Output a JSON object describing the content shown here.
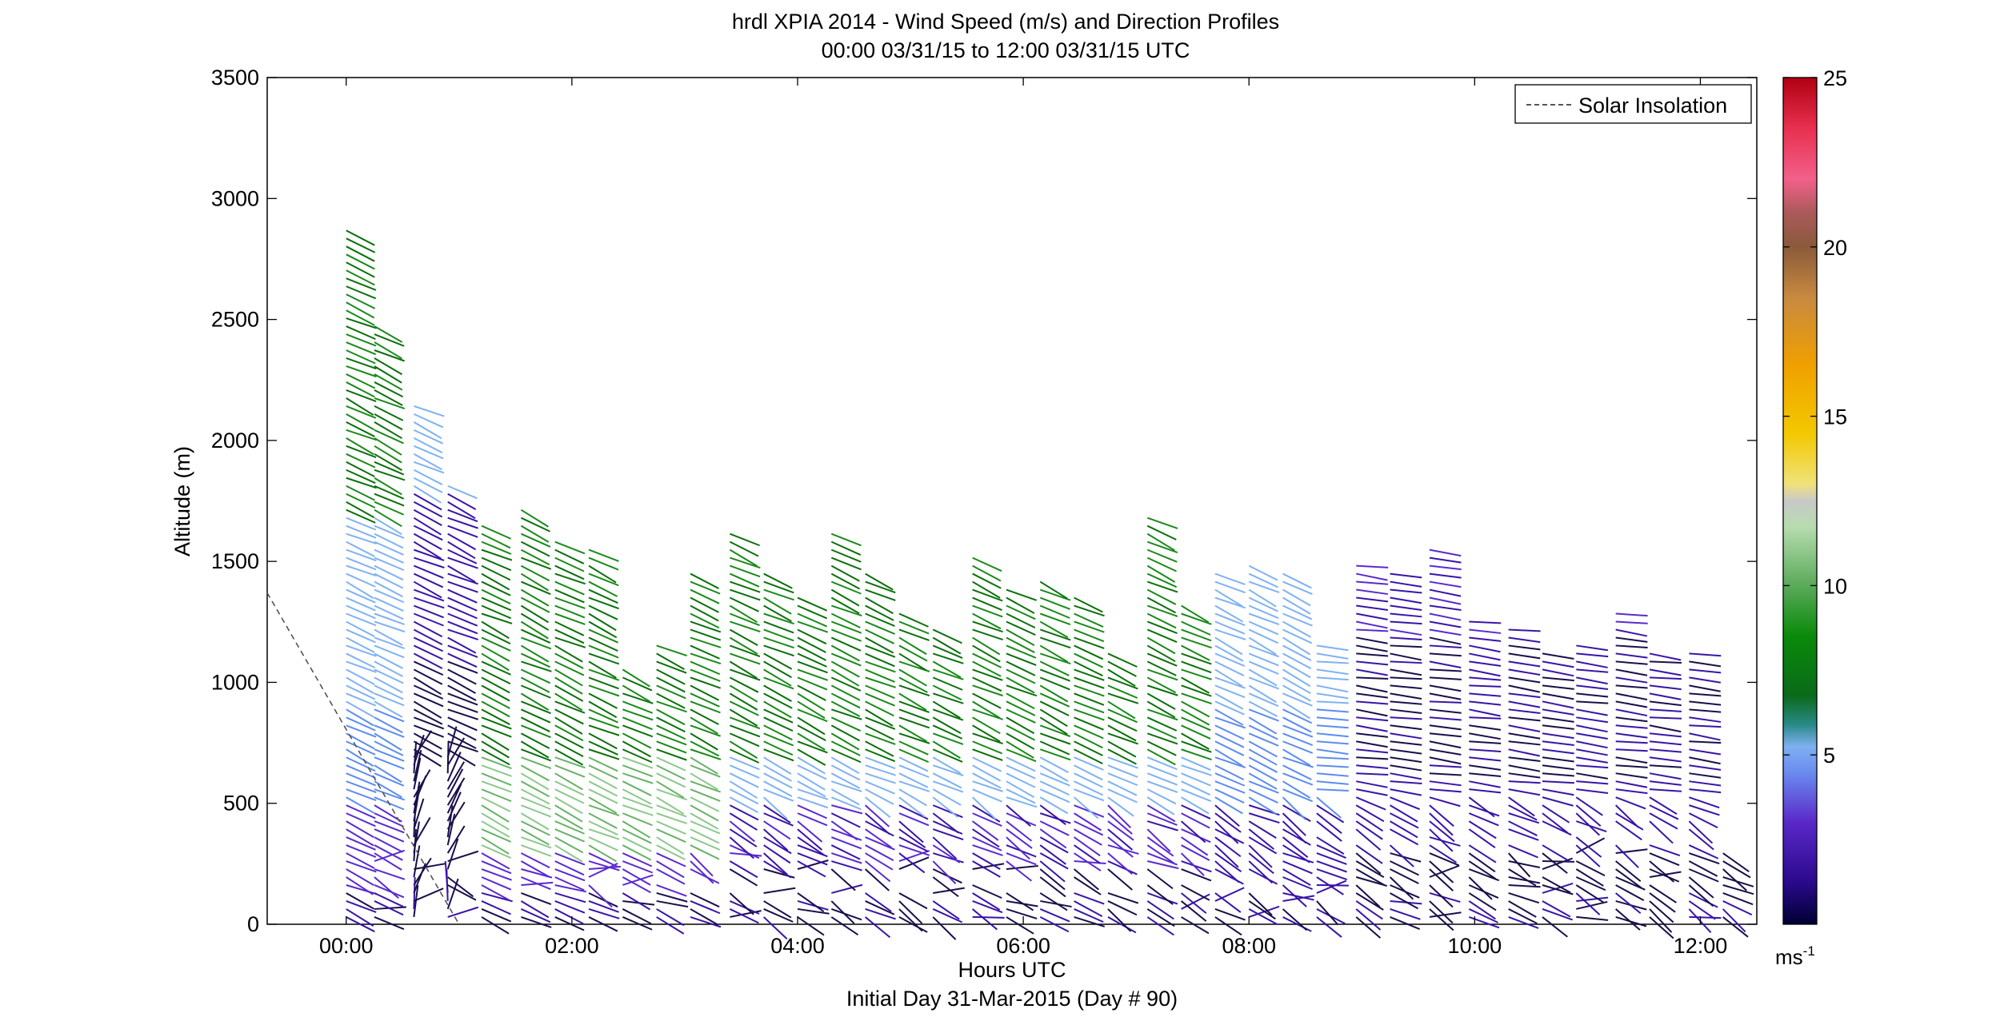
{
  "chart_data": {
    "type": "scatter",
    "title": "hrdl XPIA 2014 - Wind Speed (m/s) and Direction Profiles",
    "subtitle": "00:00 03/31/15 to 12:00 03/31/15  UTC",
    "xlabel": "Hours UTC",
    "xlabel2": "Initial Day 31-Mar-2015 (Day # 90)",
    "ylabel": "Altitude (m)",
    "xlim": [
      -0.7,
      12.5
    ],
    "ylim": [
      0,
      3500
    ],
    "x_ticks": [
      {
        "value": 0,
        "label": "00:00"
      },
      {
        "value": 2,
        "label": "02:00"
      },
      {
        "value": 4,
        "label": "04:00"
      },
      {
        "value": 6,
        "label": "06:00"
      },
      {
        "value": 8,
        "label": "08:00"
      },
      {
        "value": 10,
        "label": "10:00"
      },
      {
        "value": 12,
        "label": "12:00"
      }
    ],
    "y_ticks": [
      0,
      500,
      1000,
      1500,
      2000,
      2500,
      3000,
      3500
    ],
    "grid": false,
    "legend": {
      "position": "top-right",
      "entries": [
        {
          "label": "Solar Insolation",
          "style": "dashed",
          "color": "#555555"
        }
      ]
    },
    "colorbar": {
      "min": 0,
      "max": 25,
      "ticks": [
        5,
        10,
        15,
        20,
        25
      ],
      "unit_label": "ms",
      "unit_exponent": "-1"
    },
    "solar_insolation": {
      "x": [
        -0.7,
        1.0
      ],
      "y": [
        1370,
        0
      ]
    },
    "profile_times": [
      0.0,
      0.25,
      0.6,
      0.9,
      1.2,
      1.55,
      1.85,
      2.15,
      2.45,
      2.75,
      3.05,
      3.4,
      3.7,
      4.0,
      4.3,
      4.6,
      4.9,
      5.2,
      5.55,
      5.85,
      6.15,
      6.45,
      6.75,
      7.1,
      7.4,
      7.7,
      8.0,
      8.3,
      8.6,
      8.95,
      9.25,
      9.6,
      9.95,
      10.3,
      10.6,
      10.9,
      11.25,
      11.55,
      11.9,
      12.2
    ],
    "profile_tops": [
      2900,
      2480,
      2150,
      1820,
      1650,
      1730,
      1610,
      1580,
      1080,
      1180,
      1480,
      1620,
      1450,
      1360,
      1640,
      1480,
      1300,
      1250,
      1530,
      1400,
      1420,
      1380,
      1150,
      1710,
      1340,
      1450,
      1500,
      1450,
      1160,
      1510,
      1460,
      1550,
      1270,
      1220,
      1130,
      1180,
      1310,
      1140,
      1140,
      300
    ],
    "direction_note": "barbs oriented roughly west-northwesterly aloft, light and variable near surface"
  }
}
